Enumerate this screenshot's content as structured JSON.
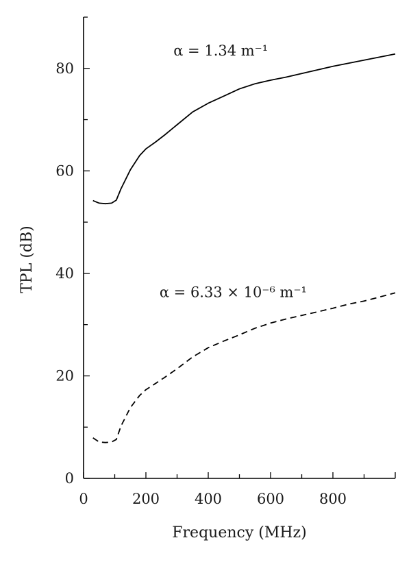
{
  "chart_data": {
    "type": "line",
    "title": "",
    "xlabel": "Frequency (MHz)",
    "ylabel": "TPL (dB)",
    "xlim": [
      0,
      1000
    ],
    "ylim": [
      0,
      90
    ],
    "xticks": [
      0,
      200,
      400,
      600,
      800
    ],
    "yticks": [
      0,
      20,
      40,
      60,
      80
    ],
    "x_minor_step": 100,
    "y_minor_step": 10,
    "grid": false,
    "series": [
      {
        "style": "solid",
        "color": "#000000",
        "x": [
          30,
          50,
          70,
          90,
          105,
          120,
          150,
          180,
          200,
          230,
          260,
          300,
          350,
          400,
          450,
          500,
          550,
          600,
          650,
          700,
          750,
          800,
          850,
          900,
          950,
          1000
        ],
        "y": [
          54.2,
          53.7,
          53.6,
          53.7,
          54.3,
          56.5,
          60.2,
          63.0,
          64.3,
          65.6,
          67.0,
          69.0,
          71.5,
          73.2,
          74.6,
          76.0,
          77.0,
          77.7,
          78.3,
          79.0,
          79.7,
          80.4,
          81.0,
          81.6,
          82.2,
          82.8
        ]
      },
      {
        "style": "dashed",
        "color": "#000000",
        "x": [
          30,
          50,
          70,
          90,
          105,
          120,
          150,
          180,
          200,
          230,
          260,
          300,
          350,
          400,
          450,
          500,
          550,
          600,
          650,
          700,
          750,
          800,
          850,
          900,
          950,
          1000
        ],
        "y": [
          7.9,
          7.1,
          7.0,
          7.1,
          7.6,
          10.2,
          13.8,
          16.2,
          17.3,
          18.5,
          19.7,
          21.4,
          23.7,
          25.5,
          26.8,
          28.0,
          29.3,
          30.3,
          31.1,
          31.8,
          32.5,
          33.2,
          34.0,
          34.6,
          35.4,
          36.2
        ]
      }
    ],
    "annotations": [
      {
        "text": "α = 1.34 m⁻¹",
        "x": 440,
        "y": 82.5
      },
      {
        "text": "α = 6.33 × 10⁻⁶ m⁻¹",
        "x": 480,
        "y": 35.4
      }
    ]
  }
}
